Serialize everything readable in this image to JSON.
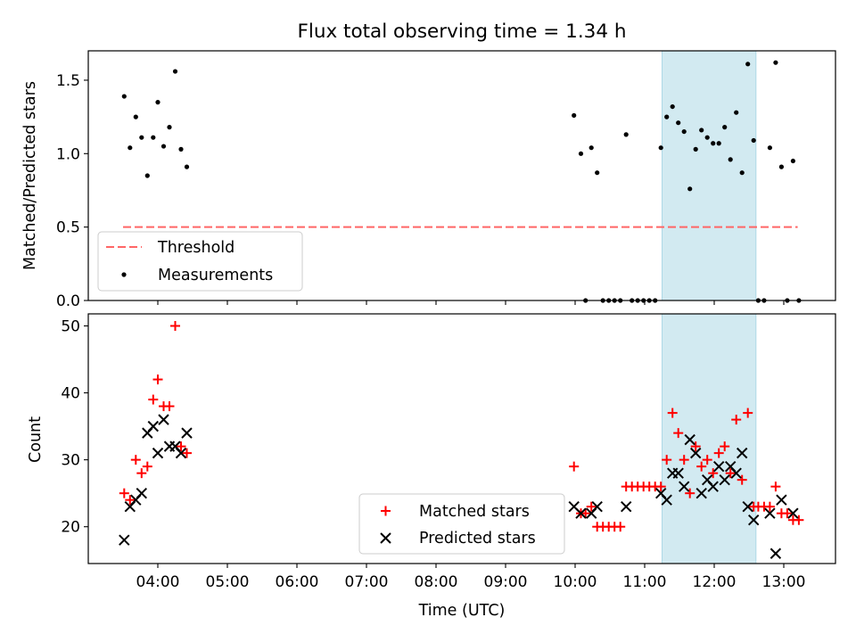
{
  "title": "Flux total observing time = 1.34 h",
  "xlabel": "Time (UTC)",
  "xticks": [
    "04:00",
    "05:00",
    "06:00",
    "07:00",
    "08:00",
    "09:00",
    "10:00",
    "11:00",
    "12:00",
    "13:00"
  ],
  "highlight_color": "#add8e6",
  "chart_data": [
    {
      "type": "scatter",
      "ylabel": "Matched/Predicted stars",
      "ylim": [
        0,
        1.7
      ],
      "yticks": [
        "0.0",
        "0.5",
        "1.0",
        "1.5"
      ],
      "highlight_span": [
        "11:15",
        "12:36"
      ],
      "legend_position": "lower-left",
      "series": [
        {
          "name": "Threshold",
          "kind": "dashed-line",
          "color": "#ff6666",
          "points": [
            [
              "03:30",
              0.5
            ],
            [
              "13:12",
              0.5
            ]
          ]
        },
        {
          "name": "Measurements",
          "kind": "dots",
          "color": "#000000",
          "points": [
            [
              "03:31",
              1.39
            ],
            [
              "03:36",
              1.04
            ],
            [
              "03:41",
              1.25
            ],
            [
              "03:46",
              1.11
            ],
            [
              "03:51",
              0.85
            ],
            [
              "03:56",
              1.11
            ],
            [
              "04:00",
              1.35
            ],
            [
              "04:05",
              1.05
            ],
            [
              "04:10",
              1.18
            ],
            [
              "04:15",
              1.56
            ],
            [
              "04:20",
              1.03
            ],
            [
              "04:25",
              0.91
            ],
            [
              "09:59",
              1.26
            ],
            [
              "10:05",
              1.0
            ],
            [
              "10:09",
              0.0
            ],
            [
              "10:14",
              1.04
            ],
            [
              "10:19",
              0.87
            ],
            [
              "10:24",
              0.0
            ],
            [
              "10:29",
              0.0
            ],
            [
              "10:34",
              0.0
            ],
            [
              "10:39",
              0.0
            ],
            [
              "10:44",
              1.13
            ],
            [
              "10:49",
              0.0
            ],
            [
              "10:54",
              0.0
            ],
            [
              "10:59",
              0.0
            ],
            [
              "11:04",
              0.0
            ],
            [
              "11:09",
              0.0
            ],
            [
              "11:14",
              1.04
            ],
            [
              "11:19",
              1.25
            ],
            [
              "11:24",
              1.32
            ],
            [
              "11:29",
              1.21
            ],
            [
              "11:34",
              1.15
            ],
            [
              "11:39",
              0.76
            ],
            [
              "11:44",
              1.03
            ],
            [
              "11:49",
              1.16
            ],
            [
              "11:54",
              1.11
            ],
            [
              "11:59",
              1.07
            ],
            [
              "12:04",
              1.07
            ],
            [
              "12:09",
              1.18
            ],
            [
              "12:14",
              0.96
            ],
            [
              "12:19",
              1.28
            ],
            [
              "12:24",
              0.87
            ],
            [
              "12:29",
              1.61
            ],
            [
              "12:34",
              1.09
            ],
            [
              "12:38",
              0.0
            ],
            [
              "12:43",
              0.0
            ],
            [
              "12:48",
              1.04
            ],
            [
              "12:53",
              1.62
            ],
            [
              "12:58",
              0.91
            ],
            [
              "13:03",
              0.0
            ],
            [
              "13:08",
              0.95
            ],
            [
              "13:13",
              0.0
            ]
          ]
        }
      ]
    },
    {
      "type": "scatter",
      "ylabel": "Count",
      "ylim": [
        14.5,
        51.8
      ],
      "yticks": [
        "20",
        "30",
        "40",
        "50"
      ],
      "highlight_span": [
        "11:15",
        "12:36"
      ],
      "legend_position": "lower-center",
      "series": [
        {
          "name": "Matched stars",
          "kind": "plus",
          "color": "#ff0000",
          "points": [
            [
              "03:31",
              25
            ],
            [
              "03:36",
              24
            ],
            [
              "03:41",
              30
            ],
            [
              "03:46",
              28
            ],
            [
              "03:51",
              29
            ],
            [
              "03:56",
              39
            ],
            [
              "04:00",
              42
            ],
            [
              "04:05",
              38
            ],
            [
              "04:10",
              38
            ],
            [
              "04:15",
              50
            ],
            [
              "04:20",
              32
            ],
            [
              "04:25",
              31
            ],
            [
              "09:59",
              29
            ],
            [
              "10:05",
              22
            ],
            [
              "10:09",
              22
            ],
            [
              "10:14",
              23
            ],
            [
              "10:19",
              20
            ],
            [
              "10:24",
              20
            ],
            [
              "10:29",
              20
            ],
            [
              "10:34",
              20
            ],
            [
              "10:39",
              20
            ],
            [
              "10:44",
              26
            ],
            [
              "10:49",
              26
            ],
            [
              "10:54",
              26
            ],
            [
              "10:59",
              26
            ],
            [
              "11:04",
              26
            ],
            [
              "11:09",
              26
            ],
            [
              "11:14",
              26
            ],
            [
              "11:19",
              30
            ],
            [
              "11:24",
              37
            ],
            [
              "11:29",
              34
            ],
            [
              "11:34",
              30
            ],
            [
              "11:39",
              25
            ],
            [
              "11:44",
              32
            ],
            [
              "11:49",
              29
            ],
            [
              "11:54",
              30
            ],
            [
              "11:59",
              28
            ],
            [
              "12:04",
              31
            ],
            [
              "12:09",
              32
            ],
            [
              "12:14",
              28
            ],
            [
              "12:19",
              36
            ],
            [
              "12:24",
              27
            ],
            [
              "12:29",
              37
            ],
            [
              "12:34",
              23
            ],
            [
              "12:38",
              23
            ],
            [
              "12:43",
              23
            ],
            [
              "12:48",
              23
            ],
            [
              "12:53",
              26
            ],
            [
              "12:58",
              22
            ],
            [
              "13:03",
              22
            ],
            [
              "13:08",
              21
            ],
            [
              "13:13",
              21
            ]
          ]
        },
        {
          "name": "Predicted stars",
          "kind": "x",
          "color": "#000000",
          "points": [
            [
              "03:31",
              18
            ],
            [
              "03:36",
              23
            ],
            [
              "03:41",
              24
            ],
            [
              "03:46",
              25
            ],
            [
              "03:51",
              34
            ],
            [
              "03:56",
              35
            ],
            [
              "04:00",
              31
            ],
            [
              "04:05",
              36
            ],
            [
              "04:10",
              32
            ],
            [
              "04:15",
              32
            ],
            [
              "04:20",
              31
            ],
            [
              "04:25",
              34
            ],
            [
              "09:59",
              23
            ],
            [
              "10:05",
              22
            ],
            [
              "10:14",
              22
            ],
            [
              "10:19",
              23
            ],
            [
              "10:44",
              23
            ],
            [
              "11:14",
              25
            ],
            [
              "11:19",
              24
            ],
            [
              "11:24",
              28
            ],
            [
              "11:29",
              28
            ],
            [
              "11:34",
              26
            ],
            [
              "11:39",
              33
            ],
            [
              "11:44",
              31
            ],
            [
              "11:49",
              25
            ],
            [
              "11:54",
              27
            ],
            [
              "11:59",
              26
            ],
            [
              "12:04",
              29
            ],
            [
              "12:09",
              27
            ],
            [
              "12:14",
              29
            ],
            [
              "12:19",
              28
            ],
            [
              "12:24",
              31
            ],
            [
              "12:29",
              23
            ],
            [
              "12:34",
              21
            ],
            [
              "12:48",
              22
            ],
            [
              "12:53",
              16
            ],
            [
              "12:58",
              24
            ],
            [
              "13:08",
              22
            ]
          ]
        }
      ]
    }
  ]
}
